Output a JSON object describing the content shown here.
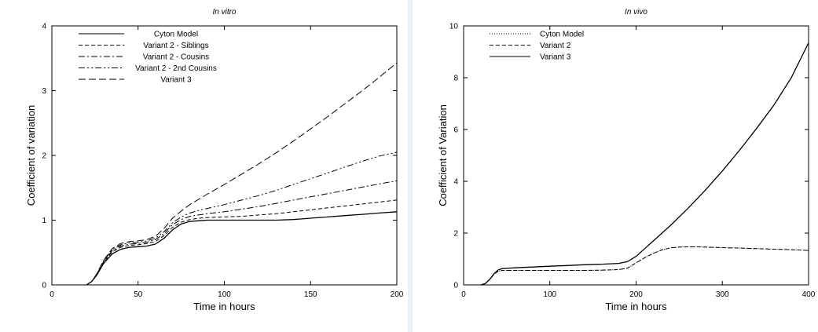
{
  "chart_data": [
    {
      "type": "line",
      "title": "In vitro",
      "xlabel": "Time in hours",
      "ylabel": "Coefficient of variation",
      "xlim": [
        0,
        200
      ],
      "ylim": [
        0,
        4
      ],
      "xticks": [
        "0",
        "50",
        "100",
        "150",
        "200"
      ],
      "yticks": [
        "0",
        "1",
        "2",
        "3",
        "4"
      ],
      "legend_position": "top-left",
      "series": [
        {
          "name": "Cyton Model",
          "style": "solid",
          "x": [
            20,
            23,
            26,
            30,
            35,
            40,
            45,
            50,
            55,
            60,
            65,
            70,
            75,
            80,
            85,
            90,
            100,
            110,
            120,
            130,
            140,
            150,
            160,
            170,
            180,
            190,
            200
          ],
          "y": [
            0,
            0.05,
            0.15,
            0.33,
            0.48,
            0.55,
            0.58,
            0.59,
            0.6,
            0.63,
            0.72,
            0.85,
            0.94,
            0.98,
            0.99,
            1.0,
            1.0,
            1.0,
            1.0,
            1.0,
            1.01,
            1.03,
            1.05,
            1.07,
            1.09,
            1.11,
            1.13
          ]
        },
        {
          "name": "Variant 2 - Siblings",
          "style": "dashed",
          "x": [
            20,
            23,
            26,
            30,
            35,
            40,
            45,
            50,
            55,
            60,
            65,
            70,
            75,
            80,
            85,
            90,
            100,
            110,
            120,
            130,
            140,
            150,
            160,
            170,
            180,
            190,
            200
          ],
          "y": [
            0,
            0.05,
            0.16,
            0.35,
            0.51,
            0.58,
            0.61,
            0.62,
            0.64,
            0.67,
            0.76,
            0.89,
            0.97,
            1.01,
            1.03,
            1.04,
            1.05,
            1.06,
            1.08,
            1.1,
            1.13,
            1.16,
            1.19,
            1.22,
            1.25,
            1.28,
            1.31
          ]
        },
        {
          "name": "Variant 2 - Cousins",
          "style": "dashdot",
          "x": [
            20,
            23,
            26,
            30,
            35,
            40,
            45,
            50,
            55,
            60,
            65,
            70,
            75,
            80,
            85,
            90,
            100,
            110,
            120,
            130,
            140,
            150,
            160,
            170,
            180,
            190,
            200
          ],
          "y": [
            0,
            0.05,
            0.16,
            0.36,
            0.53,
            0.6,
            0.63,
            0.64,
            0.66,
            0.7,
            0.79,
            0.93,
            1.01,
            1.06,
            1.08,
            1.1,
            1.13,
            1.17,
            1.21,
            1.26,
            1.31,
            1.36,
            1.41,
            1.46,
            1.51,
            1.56,
            1.61
          ]
        },
        {
          "name": "Variant 2 - 2nd Cousins",
          "style": "dashdotdot",
          "x": [
            20,
            23,
            26,
            30,
            35,
            40,
            45,
            50,
            55,
            60,
            65,
            70,
            75,
            80,
            85,
            90,
            100,
            110,
            120,
            130,
            140,
            150,
            160,
            170,
            180,
            190,
            200
          ],
          "y": [
            0,
            0.05,
            0.16,
            0.37,
            0.54,
            0.62,
            0.65,
            0.66,
            0.68,
            0.72,
            0.82,
            0.96,
            1.05,
            1.11,
            1.15,
            1.18,
            1.24,
            1.31,
            1.38,
            1.46,
            1.55,
            1.64,
            1.73,
            1.82,
            1.91,
            1.99,
            2.05
          ]
        },
        {
          "name": "Variant 3",
          "style": "longdash",
          "x": [
            20,
            23,
            26,
            30,
            35,
            40,
            45,
            50,
            55,
            60,
            65,
            70,
            75,
            80,
            85,
            90,
            100,
            110,
            120,
            130,
            140,
            150,
            160,
            170,
            180,
            190,
            200
          ],
          "y": [
            0,
            0.05,
            0.17,
            0.38,
            0.56,
            0.64,
            0.67,
            0.68,
            0.7,
            0.75,
            0.87,
            1.03,
            1.14,
            1.24,
            1.32,
            1.4,
            1.55,
            1.71,
            1.87,
            2.04,
            2.22,
            2.41,
            2.6,
            2.8,
            3.0,
            3.21,
            3.43
          ]
        }
      ]
    },
    {
      "type": "line",
      "title": "In vivo",
      "xlabel": "Time in hours",
      "ylabel": "Coefficient of Variation",
      "xlim": [
        0,
        400
      ],
      "ylim": [
        0,
        10
      ],
      "xticks": [
        "0",
        "100",
        "200",
        "300",
        "400"
      ],
      "yticks": [
        "0",
        "2",
        "4",
        "6",
        "8",
        "10"
      ],
      "legend_position": "top-left",
      "series": [
        {
          "name": "Cyton Model",
          "style": "dotted",
          "x": [
            20,
            25,
            30,
            35,
            40,
            45,
            50,
            60,
            80,
            100,
            120,
            140,
            160,
            180,
            190,
            200,
            210,
            220,
            230,
            240,
            250,
            260,
            270,
            280,
            300,
            320,
            340,
            360,
            380,
            400
          ],
          "y": [
            0,
            0.05,
            0.2,
            0.4,
            0.53,
            0.56,
            0.56,
            0.56,
            0.56,
            0.56,
            0.56,
            0.56,
            0.57,
            0.59,
            0.65,
            0.85,
            1.05,
            1.22,
            1.35,
            1.43,
            1.46,
            1.47,
            1.47,
            1.46,
            1.44,
            1.42,
            1.4,
            1.38,
            1.36,
            1.33
          ]
        },
        {
          "name": "Variant 2",
          "style": "dashed",
          "x": [
            20,
            25,
            30,
            35,
            40,
            45,
            50,
            60,
            80,
            100,
            120,
            140,
            160,
            180,
            190,
            200,
            210,
            220,
            230,
            240,
            250,
            260,
            270,
            280,
            300,
            320,
            340,
            360,
            380,
            400
          ],
          "y": [
            0,
            0.05,
            0.2,
            0.4,
            0.53,
            0.56,
            0.56,
            0.56,
            0.56,
            0.56,
            0.56,
            0.56,
            0.57,
            0.59,
            0.65,
            0.85,
            1.05,
            1.22,
            1.35,
            1.43,
            1.46,
            1.47,
            1.47,
            1.46,
            1.44,
            1.42,
            1.4,
            1.38,
            1.36,
            1.33
          ]
        },
        {
          "name": "Variant 3",
          "style": "solid",
          "x": [
            20,
            25,
            30,
            35,
            40,
            45,
            50,
            60,
            80,
            100,
            120,
            140,
            160,
            180,
            190,
            200,
            210,
            220,
            240,
            260,
            280,
            300,
            320,
            340,
            360,
            380,
            400
          ],
          "y": [
            0,
            0.05,
            0.2,
            0.42,
            0.58,
            0.63,
            0.64,
            0.66,
            0.69,
            0.72,
            0.75,
            0.78,
            0.8,
            0.83,
            0.9,
            1.1,
            1.4,
            1.7,
            2.3,
            2.95,
            3.65,
            4.4,
            5.2,
            6.05,
            6.95,
            8.0,
            9.35
          ]
        }
      ]
    }
  ]
}
